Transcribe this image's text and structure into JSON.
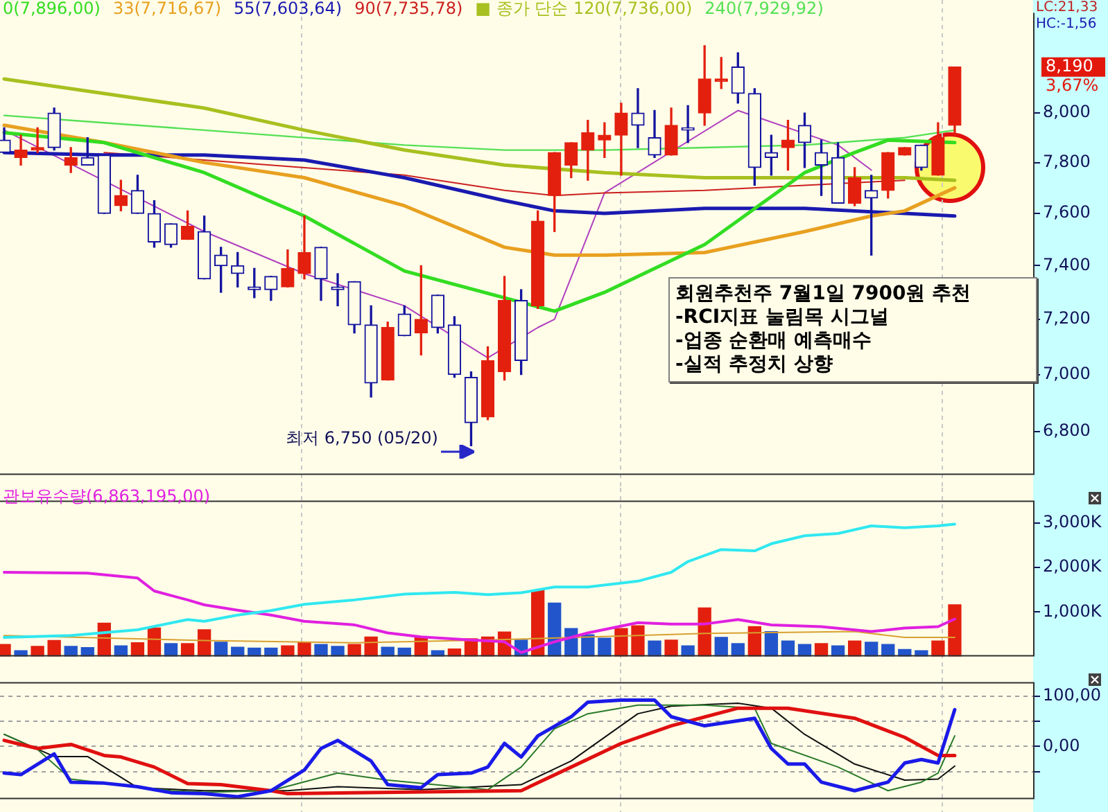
{
  "chart_data": [
    {
      "type": "candlestick",
      "log": true,
      "tick_labels": "y",
      "categories": [
        null,
        null,
        null,
        null,
        null,
        null,
        null,
        null,
        null,
        null,
        null,
        null,
        null,
        null,
        null,
        null,
        null,
        null,
        null,
        null,
        null,
        null,
        null,
        null,
        null,
        null,
        null,
        null,
        null,
        null,
        null,
        null,
        null,
        null,
        null,
        null,
        null,
        null,
        null,
        null,
        null,
        null,
        null,
        null,
        null,
        null,
        null,
        null,
        null,
        null,
        null,
        null,
        null,
        null,
        null,
        null,
        null,
        null
      ],
      "ohlc": [
        [
          7890,
          7940,
          7840,
          7840
        ],
        [
          7820,
          7910,
          7790,
          7850
        ],
        [
          7850,
          7940,
          7840,
          7860
        ],
        [
          8000,
          8020,
          7850,
          7860
        ],
        [
          7790,
          7860,
          7760,
          7820
        ],
        [
          7820,
          7900,
          7790,
          7790
        ],
        [
          7830,
          7830,
          7600,
          7600
        ],
        [
          7630,
          7730,
          7610,
          7670
        ],
        [
          7690,
          7750,
          7600,
          7600
        ],
        [
          7600,
          7650,
          7470,
          7490
        ],
        [
          7560,
          7560,
          7470,
          7480
        ],
        [
          7500,
          7610,
          7500,
          7550
        ],
        [
          7530,
          7590,
          7350,
          7350
        ],
        [
          7440,
          7470,
          7300,
          7400
        ],
        [
          7400,
          7450,
          7320,
          7370
        ],
        [
          7320,
          7390,
          7280,
          7310
        ],
        [
          7360,
          7360,
          7270,
          7310
        ],
        [
          7320,
          7460,
          7320,
          7390
        ],
        [
          7370,
          7590,
          7350,
          7450
        ],
        [
          7470,
          7470,
          7270,
          7350
        ],
        [
          7320,
          7370,
          7250,
          7310
        ],
        [
          7340,
          7340,
          7150,
          7180
        ],
        [
          7180,
          7250,
          6920,
          6970
        ],
        [
          6980,
          7190,
          6980,
          7170
        ],
        [
          7220,
          7250,
          7140,
          7140
        ],
        [
          7150,
          7400,
          7070,
          7200
        ],
        [
          7290,
          7290,
          7150,
          7170
        ],
        [
          7180,
          7210,
          6990,
          7000
        ],
        [
          6990,
          7010,
          6750,
          6830
        ],
        [
          6850,
          7100,
          6840,
          7050
        ],
        [
          7010,
          7360,
          6980,
          7270
        ],
        [
          7270,
          7310,
          7000,
          7050
        ],
        [
          7250,
          7610,
          7240,
          7570
        ],
        [
          7670,
          7840,
          7530,
          7840
        ],
        [
          7790,
          7880,
          7740,
          7880
        ],
        [
          7850,
          7970,
          7730,
          7920
        ],
        [
          7890,
          7960,
          7820,
          7910
        ],
        [
          7910,
          8040,
          7750,
          8000
        ],
        [
          8000,
          8100,
          7860,
          7950
        ],
        [
          7900,
          8010,
          7820,
          7830
        ],
        [
          7830,
          8020,
          7830,
          7950
        ],
        [
          7940,
          8030,
          7880,
          7930
        ],
        [
          8000,
          8280,
          7950,
          8140
        ],
        [
          8130,
          8230,
          8100,
          8140
        ],
        [
          8190,
          8250,
          8040,
          8080
        ],
        [
          8080,
          8100,
          7710,
          7780
        ],
        [
          7840,
          7910,
          7750,
          7820
        ],
        [
          7860,
          7970,
          7770,
          7890
        ],
        [
          7950,
          8000,
          7780,
          7880
        ],
        [
          7840,
          7890,
          7670,
          7790
        ],
        [
          7820,
          7880,
          7640,
          7640
        ],
        [
          7640,
          7780,
          7630,
          7740
        ],
        [
          7690,
          7750,
          7440,
          7660
        ],
        [
          7690,
          7840,
          7660,
          7840
        ],
        [
          7830,
          7860,
          7830,
          7860
        ],
        [
          7870,
          7870,
          7770,
          7780
        ],
        [
          7750,
          7960,
          7750,
          7900
        ],
        [
          7950,
          8190,
          7910,
          8190
        ]
      ],
      "colors": [
        "#1414a0",
        "#e3200e",
        "#e3200e",
        "#1414a0",
        "#e3200e",
        "#1414a0",
        "#1414a0",
        "#e3200e",
        "#1414a0",
        "#1414a0",
        "#1414a0",
        "#e3200e",
        "#1414a0",
        "#1414a0",
        "#1414a0",
        "#1414a0",
        "#1414a0",
        "#e3200e",
        "#e3200e",
        "#1414a0",
        "#1414a0",
        "#1414a0",
        "#1414a0",
        "#e3200e",
        "#1414a0",
        "#e3200e",
        "#1414a0",
        "#1414a0",
        "#1414a0",
        "#e3200e",
        "#e3200e",
        "#1414a0",
        "#e3200e",
        "#e3200e",
        "#e3200e",
        "#e3200e",
        "#e3200e",
        "#e3200e",
        "#1414a0",
        "#1414a0",
        "#e3200e",
        "#1414a0",
        "#e3200e",
        "#e3200e",
        "#1414a0",
        "#1414a0",
        "#1414a0",
        "#e3200e",
        "#1414a0",
        "#1414a0",
        "#1414a0",
        "#e3200e",
        "#1414a0",
        "#e3200e",
        "#e3200e",
        "#1414a0",
        "#e3200e",
        "#e3200e"
      ],
      "series": [
        {
          "type": "line",
          "name": "0(7,896,00)",
          "color": "#33dd22",
          "values": [
            7920,
            null,
            null,
            null,
            null,
            null,
            7880,
            null,
            null,
            null,
            null,
            null,
            7760,
            null,
            null,
            null,
            null,
            null,
            7590,
            null,
            null,
            null,
            null,
            null,
            7380,
            null,
            null,
            null,
            null,
            null,
            null,
            null,
            null,
            7230,
            null,
            null,
            7300,
            null,
            null,
            null,
            null,
            null,
            7480,
            null,
            null,
            null,
            null,
            null,
            7760,
            null,
            null,
            7840,
            null,
            7890,
            null,
            null,
            null,
            7880
          ]
        },
        {
          "type": "line",
          "name": "33(7,716,67)",
          "color": "#e8a020",
          "values": [
            7950,
            null,
            null,
            null,
            null,
            null,
            7880,
            null,
            null,
            null,
            null,
            null,
            7800,
            null,
            null,
            null,
            null,
            null,
            7740,
            null,
            null,
            null,
            null,
            null,
            7630,
            null,
            null,
            null,
            null,
            null,
            7470,
            null,
            null,
            7440,
            null,
            null,
            7440,
            null,
            null,
            null,
            null,
            null,
            7450,
            null,
            null,
            null,
            null,
            null,
            7530,
            null,
            null,
            null,
            7590,
            null,
            7610,
            null,
            null,
            7700
          ]
        },
        {
          "type": "line",
          "name": "55(7,603,64)",
          "color": "#1a1ab0",
          "values": [
            7840,
            null,
            null,
            null,
            null,
            null,
            7830,
            null,
            null,
            null,
            null,
            null,
            7830,
            null,
            null,
            null,
            null,
            null,
            7810,
            null,
            null,
            null,
            null,
            null,
            7740,
            null,
            null,
            null,
            null,
            null,
            7650,
            null,
            null,
            7610,
            null,
            null,
            7600,
            null,
            null,
            null,
            null,
            null,
            7620,
            null,
            null,
            null,
            null,
            null,
            7620,
            null,
            null,
            null,
            null,
            null,
            7600,
            null,
            null,
            7590
          ]
        },
        {
          "type": "line",
          "name": "90(7,735,78)",
          "color": "#cc2020",
          "values": [
            null,
            null,
            null,
            null,
            null,
            null,
            7840,
            null,
            null,
            null,
            null,
            null,
            7810,
            null,
            null,
            null,
            null,
            null,
            7780,
            null,
            null,
            null,
            null,
            null,
            7750,
            null,
            null,
            null,
            null,
            null,
            7690,
            null,
            null,
            7670,
            null,
            null,
            7680,
            null,
            null,
            null,
            null,
            null,
            7690,
            null,
            null,
            null,
            null,
            null,
            7710,
            null,
            null,
            null,
            null,
            null,
            7730,
            null,
            null,
            null
          ]
        },
        {
          "type": "line",
          "name": "■ 종가 단순 120(7,736,00)",
          "color": "#a8c020",
          "values": [
            8140,
            null,
            null,
            null,
            null,
            null,
            8080,
            null,
            null,
            null,
            null,
            null,
            8020,
            null,
            null,
            null,
            null,
            null,
            7930,
            null,
            null,
            null,
            null,
            null,
            7850,
            null,
            null,
            null,
            null,
            null,
            7790,
            null,
            null,
            null,
            null,
            null,
            7760,
            null,
            null,
            null,
            null,
            null,
            7740,
            null,
            null,
            null,
            null,
            null,
            7740,
            null,
            null,
            null,
            null,
            null,
            7740,
            null,
            null,
            7730
          ]
        },
        {
          "type": "line",
          "name": "240(7,929,92)",
          "color": "#55e055",
          "values": [
            7990,
            null,
            null,
            null,
            null,
            null,
            7960,
            null,
            null,
            null,
            null,
            null,
            7930,
            null,
            null,
            null,
            null,
            null,
            7900,
            null,
            null,
            null,
            null,
            null,
            7870,
            null,
            null,
            null,
            null,
            null,
            7850,
            null,
            null,
            7850,
            null,
            null,
            7850,
            null,
            null,
            null,
            null,
            null,
            7860,
            null,
            null,
            null,
            null,
            null,
            7870,
            null,
            null,
            null,
            null,
            null,
            7900,
            null,
            null,
            7930
          ]
        },
        {
          "type": "line",
          "color": "#b040c0",
          "values": [
            7930,
            null,
            null,
            null,
            null,
            null,
            null,
            null,
            null,
            null,
            null,
            null,
            7530,
            null,
            null,
            null,
            null,
            null,
            7370,
            null,
            null,
            null,
            null,
            null,
            7250,
            null,
            null,
            null,
            null,
            7060,
            null,
            null,
            7170,
            7200,
            null,
            null,
            7680,
            null,
            null,
            null,
            null,
            null,
            null,
            null,
            8010,
            null,
            null,
            null,
            null,
            null,
            7870,
            null,
            7770,
            null,
            null,
            null,
            null,
            null
          ]
        }
      ],
      "ylim": [
        6650,
        8420
      ],
      "yticks": [
        {
          "value": 6800,
          "label": "6,800"
        },
        {
          "value": 7000,
          "label": "7,000"
        },
        {
          "value": 7200,
          "label": "7,200"
        },
        {
          "value": 7400,
          "label": "7,400"
        },
        {
          "value": 7600,
          "label": "7,600"
        },
        {
          "value": 7800,
          "label": "7,800"
        },
        {
          "value": 8000,
          "label": "8,000"
        }
      ],
      "annotations": [
        "회원추천주 7월1일 7900원 추천",
        "-RCI지표 눌림목 시그널",
        "-업종 순환매 예측매수",
        "-실적 추정치 상향",
        "최저 6,750 (05/20)",
        "8,190",
        "3,67%",
        "LC:21,33",
        "HC:-1,56"
      ]
    },
    {
      "type": "bar",
      "tick_labels": "y",
      "categories": [
        null,
        null,
        null,
        null,
        null,
        null,
        null,
        null,
        null,
        null,
        null,
        null,
        null,
        null,
        null,
        null,
        null,
        null,
        null,
        null,
        null,
        null,
        null,
        null,
        null,
        null,
        null,
        null,
        null,
        null,
        null,
        null,
        null,
        null,
        null,
        null,
        null,
        null,
        null,
        null,
        null,
        null,
        null,
        null,
        null,
        null,
        null,
        null,
        null,
        null,
        null,
        null,
        null,
        null,
        null,
        null,
        null,
        null
      ],
      "series": [
        {
          "type": "bar",
          "colors": [
            "#e3200e",
            "#2255cc",
            "#e3200e",
            "#e3200e",
            "#2255cc",
            "#2255cc",
            "#e3200e",
            "#2255cc",
            "#e3200e",
            "#e3200e",
            "#2255cc",
            "#e3200e",
            "#e3200e",
            "#2255cc",
            "#2255cc",
            "#2255cc",
            "#2255cc",
            "#e3200e",
            "#e3200e",
            "#2255cc",
            "#2255cc",
            "#e3200e",
            "#e3200e",
            "#2255cc",
            "#2255cc",
            "#e3200e",
            "#2255cc",
            "#e3200e",
            "#e3200e",
            "#e3200e",
            "#e3200e",
            "#2255cc",
            "#e3200e",
            "#2255cc",
            "#2255cc",
            "#2255cc",
            "#2255cc",
            "#e3200e",
            "#e3200e",
            "#2255cc",
            "#e3200e",
            "#2255cc",
            "#e3200e",
            "#2255cc",
            "#2255cc",
            "#e3200e",
            "#2255cc",
            "#2255cc",
            "#2255cc",
            "#e3200e",
            "#2255cc",
            "#e3200e",
            "#2255cc",
            "#2255cc",
            "#2255cc",
            "#2255cc",
            "#e3200e",
            "#e3200e"
          ],
          "values": [
            270,
            130,
            230,
            360,
            230,
            200,
            750,
            240,
            310,
            640,
            290,
            290,
            600,
            320,
            210,
            190,
            190,
            240,
            310,
            270,
            230,
            270,
            440,
            210,
            190,
            440,
            130,
            170,
            400,
            440,
            550,
            370,
            1490,
            1200,
            630,
            490,
            410,
            630,
            690,
            350,
            370,
            240,
            1090,
            430,
            290,
            670,
            560,
            350,
            270,
            290,
            240,
            350,
            320,
            270,
            160,
            130,
            350,
            1160
          ]
        },
        {
          "type": "line",
          "color": "#30e8f0",
          "values": [
            430,
            null,
            null,
            null,
            470,
            null,
            null,
            null,
            600,
            null,
            null,
            830,
            790,
            null,
            930,
            null,
            1030,
            null,
            1170,
            null,
            null,
            1270,
            null,
            null,
            1400,
            null,
            null,
            1440,
            null,
            1390,
            null,
            1430,
            null,
            1560,
            null,
            1560,
            null,
            null,
            1690,
            null,
            1890,
            2130,
            null,
            2400,
            null,
            2370,
            2530,
            null,
            2710,
            null,
            2760,
            null,
            2930,
            null,
            2890,
            null,
            2930,
            2970
          ]
        },
        {
          "type": "line",
          "name": "관보유수량(6,863,195,00)",
          "color": "#e020e0",
          "values": [
            1890,
            null,
            null,
            null,
            null,
            1870,
            null,
            null,
            1760,
            1470,
            null,
            1270,
            1160,
            null,
            1040,
            null,
            930,
            null,
            790,
            null,
            null,
            710,
            null,
            530,
            null,
            440,
            null,
            null,
            370,
            null,
            330,
            90,
            null,
            330,
            null,
            530,
            null,
            null,
            760,
            null,
            730,
            null,
            730,
            null,
            830,
            null,
            710,
            null,
            null,
            670,
            null,
            null,
            560,
            null,
            640,
            null,
            670,
            840
          ]
        },
        {
          "type": "line",
          "color": "#d8a030",
          "values": [
            470,
            null,
            null,
            null,
            null,
            null,
            null,
            null,
            null,
            null,
            null,
            null,
            360,
            null,
            null,
            null,
            null,
            null,
            null,
            null,
            null,
            310,
            null,
            null,
            null,
            null,
            null,
            null,
            null,
            370,
            null,
            null,
            null,
            null,
            null,
            null,
            null,
            null,
            470,
            null,
            null,
            null,
            520,
            null,
            null,
            null,
            null,
            null,
            null,
            null,
            null,
            560,
            null,
            null,
            430,
            null,
            null,
            430
          ]
        }
      ],
      "ylim": [
        0,
        3500
      ],
      "yticks": [
        {
          "value": 1000,
          "label": "1,000K"
        },
        {
          "value": 2000,
          "label": "2,000K"
        },
        {
          "value": 3000,
          "label": "3,000K"
        }
      ]
    },
    {
      "type": "line",
      "grid": "y",
      "tick_labels": "y",
      "categories": [
        null,
        null,
        null,
        null,
        null,
        null,
        null,
        null,
        null,
        null,
        null,
        null,
        null,
        null,
        null,
        null,
        null,
        null,
        null,
        null,
        null,
        null,
        null,
        null,
        null,
        null,
        null,
        null,
        null,
        null,
        null,
        null,
        null,
        null,
        null,
        null,
        null,
        null,
        null,
        null,
        null,
        null,
        null,
        null,
        null,
        null,
        null,
        null,
        null,
        null,
        null,
        null,
        null,
        null,
        null,
        null,
        null,
        null
      ],
      "series": [
        {
          "color": "#1a1ae8",
          "values": [
            -53,
            -56,
            null,
            -15,
            -71,
            null,
            -73,
            null,
            -80,
            null,
            -92,
            null,
            -94,
            null,
            -100,
            null,
            -88,
            null,
            -47,
            -4,
            12,
            null,
            -29,
            -76,
            null,
            -82,
            -56,
            null,
            -53,
            -41,
            6,
            -21,
            21,
            null,
            59,
            88,
            null,
            92,
            null,
            92,
            59,
            null,
            41,
            null,
            null,
            56,
            -4,
            -35,
            -35,
            -71,
            null,
            -88,
            null,
            -71,
            -33,
            -26,
            -33,
            73
          ]
        },
        {
          "color": "#e01010",
          "values": [
            12,
            4,
            -4,
            null,
            4,
            null,
            -18,
            -21,
            null,
            -41,
            null,
            -74,
            null,
            -76,
            null,
            null,
            -88,
            -94,
            null,
            null,
            null,
            -92,
            null,
            null,
            null,
            null,
            null,
            null,
            null,
            null,
            null,
            -88,
            null,
            null,
            -41,
            null,
            null,
            6,
            null,
            null,
            41,
            null,
            null,
            null,
            76,
            null,
            null,
            76,
            null,
            null,
            null,
            56,
            null,
            null,
            18,
            null,
            -18,
            -18
          ]
        },
        {
          "color": "#2a7a2a",
          "values": [
            24,
            null,
            -6,
            null,
            -65,
            null,
            null,
            null,
            null,
            null,
            -88,
            null,
            -91,
            null,
            null,
            null,
            -88,
            null,
            null,
            null,
            -53,
            null,
            null,
            -67,
            null,
            null,
            null,
            null,
            null,
            -86,
            null,
            -41,
            null,
            35,
            null,
            65,
            null,
            null,
            82,
            null,
            null,
            null,
            82,
            null,
            null,
            76,
            6,
            null,
            null,
            null,
            -41,
            null,
            null,
            -88,
            null,
            -71,
            -53,
            21
          ]
        },
        {
          "color": "#101010",
          "values": [
            24,
            null,
            null,
            -20,
            null,
            -20,
            null,
            null,
            -82,
            null,
            null,
            null,
            -88,
            null,
            null,
            null,
            null,
            -88,
            null,
            null,
            -80,
            null,
            null,
            null,
            null,
            -86,
            null,
            null,
            null,
            null,
            null,
            -76,
            null,
            null,
            -29,
            null,
            null,
            null,
            65,
            null,
            80,
            null,
            null,
            null,
            86,
            null,
            76,
            null,
            24,
            null,
            null,
            -35,
            null,
            null,
            -67,
            null,
            -65,
            -39
          ]
        }
      ],
      "ylim": [
        -105,
        128
      ],
      "yticks": [
        {
          "value": -50,
          "label": null
        },
        {
          "value": 0,
          "label": "0,00"
        },
        {
          "value": 50,
          "label": null
        },
        {
          "value": 100,
          "label": "100,00"
        }
      ]
    }
  ]
}
